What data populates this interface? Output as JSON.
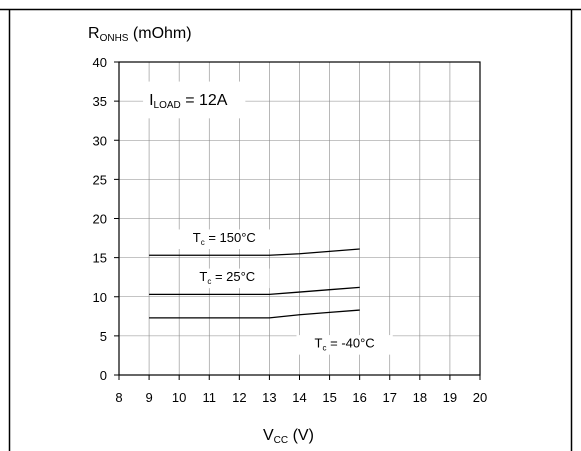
{
  "chart_data": {
    "type": "line",
    "ylabel": {
      "main": "R",
      "sub": "ONHS",
      "unit": " (mOhm)"
    },
    "xlabel": {
      "main": "V",
      "sub": "CC",
      "unit": " (V)"
    },
    "xlim": [
      8,
      20
    ],
    "ylim": [
      0,
      40
    ],
    "x_ticks": [
      8,
      9,
      10,
      11,
      12,
      13,
      14,
      15,
      16,
      17,
      18,
      19,
      20
    ],
    "y_ticks": [
      0,
      5,
      10,
      15,
      20,
      25,
      30,
      35,
      40
    ],
    "grid": true,
    "condition": {
      "main": "I",
      "sub": "LOAD",
      "rest": " = 12A"
    },
    "series": [
      {
        "label": {
          "main": "T",
          "sub": "c",
          "rest": " = 150°C"
        },
        "x": [
          9,
          10,
          11,
          12,
          13,
          14,
          15,
          16
        ],
        "y": [
          15.3,
          15.3,
          15.3,
          15.3,
          15.3,
          15.5,
          15.8,
          16.1
        ]
      },
      {
        "label": {
          "main": "T",
          "sub": "c",
          "rest": " = 25°C"
        },
        "x": [
          9,
          10,
          11,
          12,
          13,
          14,
          15,
          16
        ],
        "y": [
          10.3,
          10.3,
          10.3,
          10.3,
          10.3,
          10.6,
          10.9,
          11.2
        ]
      },
      {
        "label": {
          "main": "T",
          "sub": "c",
          "rest": " = -40°C"
        },
        "x": [
          9,
          10,
          11,
          12,
          13,
          14,
          15,
          16
        ],
        "y": [
          7.3,
          7.3,
          7.3,
          7.3,
          7.3,
          7.7,
          8.0,
          8.3
        ]
      }
    ]
  }
}
